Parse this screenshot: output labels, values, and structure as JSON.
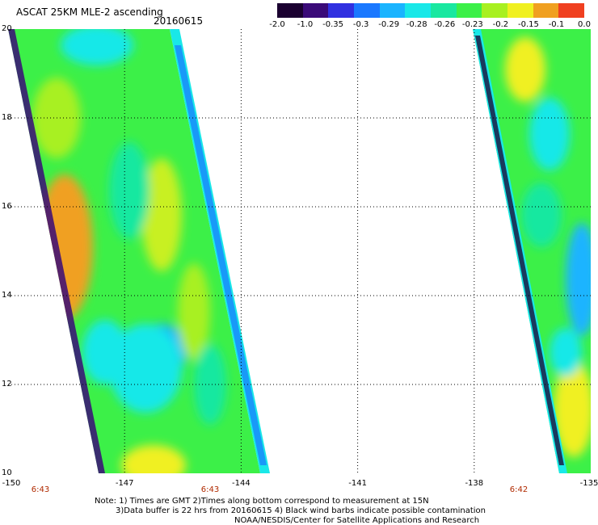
{
  "header": {
    "title": "ASCAT 25KM MLE-2 ascending",
    "date": "20160615"
  },
  "colorbar": {
    "labels": [
      "-2.0",
      "-1.0",
      "-0.35",
      "-0.3",
      "-0.29",
      "-0.28",
      "-0.26",
      "-0.23",
      "-0.2",
      "-0.15",
      "-0.1",
      "0.0"
    ],
    "colors": [
      "#1a0030",
      "#3a0a78",
      "#3030e0",
      "#1a78ff",
      "#1ab4ff",
      "#19e8e8",
      "#19e8a0",
      "#3cf048",
      "#a8f020",
      "#f0f020",
      "#f0a020",
      "#f04020"
    ]
  },
  "map": {
    "lon_labels": [
      "-150",
      "-147",
      "-144",
      "-141",
      "-138",
      "-135"
    ],
    "lat_labels": [
      "20",
      "18",
      "16",
      "14",
      "12",
      "10"
    ],
    "pass_times": [
      "6:43",
      "6:43",
      "6:42"
    ],
    "swath_colors": {
      "base": "#3cf048",
      "cyan": "#19e8e8",
      "blue": "#1ab4ff",
      "yellow": "#c8f020",
      "orange": "#f0a020",
      "edge_dark": "#1a0030",
      "edge_purple": "#3a0a78"
    }
  },
  "notes": {
    "line1": "Note: 1) Times are GMT 2)Times along bottom correspond to measurement at 15N",
    "line2": "3)Data buffer is 22 hrs from 20160615 4) Black wind barbs indicate possible contamination",
    "line3": "NOAA/NESDIS/Center for Satellite Applications and Research"
  }
}
